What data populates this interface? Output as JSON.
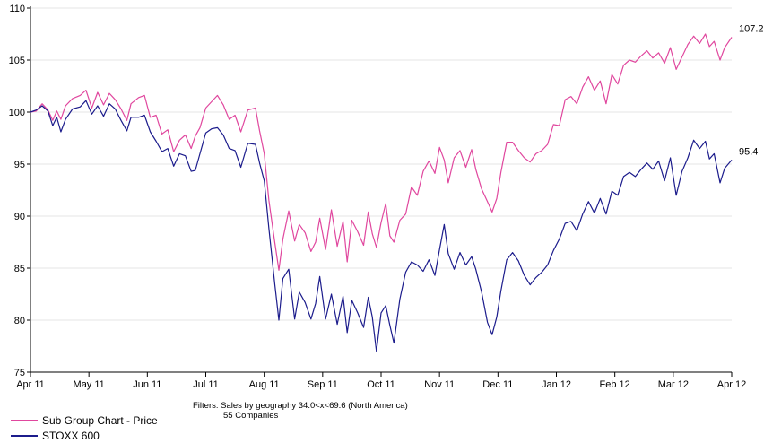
{
  "chart_data": {
    "type": "line",
    "title": "",
    "xlabel": "",
    "ylabel": "",
    "ylim": [
      75,
      110
    ],
    "yticks": [
      75,
      80,
      85,
      90,
      95,
      100,
      105,
      110
    ],
    "xlim": [
      0,
      12
    ],
    "xticks": [
      {
        "label": "Apr 11",
        "x": 0
      },
      {
        "label": "May 11",
        "x": 1
      },
      {
        "label": "Jun 11",
        "x": 2
      },
      {
        "label": "Jul 11",
        "x": 3
      },
      {
        "label": "Aug 11",
        "x": 4
      },
      {
        "label": "Sep 11",
        "x": 5
      },
      {
        "label": "Oct 11",
        "x": 6
      },
      {
        "label": "Nov 11",
        "x": 7
      },
      {
        "label": "Dec 11",
        "x": 8
      },
      {
        "label": "Jan 12",
        "x": 9
      },
      {
        "label": "Feb 12",
        "x": 10
      },
      {
        "label": "Mar 12",
        "x": 11
      },
      {
        "label": "Apr 12",
        "x": 12
      }
    ],
    "grid": "horizontal",
    "legend_position": "bottom-left",
    "series": [
      {
        "name": "Sub Group Chart - Price",
        "color": "#e0479e",
        "end_label": "107.2",
        "points": [
          [
            0,
            100
          ],
          [
            0.1,
            100.1
          ],
          [
            0.2,
            100.8
          ],
          [
            0.3,
            100.2
          ],
          [
            0.38,
            99.2
          ],
          [
            0.45,
            100.1
          ],
          [
            0.52,
            99.3
          ],
          [
            0.6,
            100.6
          ],
          [
            0.72,
            101.3
          ],
          [
            0.85,
            101.6
          ],
          [
            0.95,
            102.1
          ],
          [
            1.05,
            100.4
          ],
          [
            1.15,
            101.9
          ],
          [
            1.25,
            100.7
          ],
          [
            1.35,
            101.8
          ],
          [
            1.45,
            101.2
          ],
          [
            1.55,
            100.3
          ],
          [
            1.65,
            99.2
          ],
          [
            1.72,
            100.8
          ],
          [
            1.85,
            101.4
          ],
          [
            1.95,
            101.6
          ],
          [
            2.05,
            99.5
          ],
          [
            2.15,
            99.7
          ],
          [
            2.25,
            97.9
          ],
          [
            2.35,
            98.3
          ],
          [
            2.45,
            96.2
          ],
          [
            2.55,
            97.3
          ],
          [
            2.65,
            97.8
          ],
          [
            2.75,
            96.5
          ],
          [
            2.82,
            97.7
          ],
          [
            2.9,
            98.5
          ],
          [
            3.0,
            100.4
          ],
          [
            3.1,
            101.0
          ],
          [
            3.2,
            101.6
          ],
          [
            3.3,
            100.7
          ],
          [
            3.4,
            99.3
          ],
          [
            3.5,
            99.7
          ],
          [
            3.6,
            98.1
          ],
          [
            3.72,
            100.2
          ],
          [
            3.85,
            100.4
          ],
          [
            3.92,
            98.2
          ],
          [
            4.0,
            96.0
          ],
          [
            4.08,
            91.5
          ],
          [
            4.18,
            87.5
          ],
          [
            4.25,
            84.8
          ],
          [
            4.32,
            87.8
          ],
          [
            4.42,
            90.5
          ],
          [
            4.52,
            87.6
          ],
          [
            4.6,
            89.2
          ],
          [
            4.7,
            88.4
          ],
          [
            4.8,
            86.6
          ],
          [
            4.88,
            87.5
          ],
          [
            4.95,
            89.8
          ],
          [
            5.05,
            86.8
          ],
          [
            5.15,
            90.6
          ],
          [
            5.25,
            87.1
          ],
          [
            5.35,
            89.5
          ],
          [
            5.42,
            85.6
          ],
          [
            5.5,
            89.6
          ],
          [
            5.6,
            88.5
          ],
          [
            5.7,
            87.2
          ],
          [
            5.78,
            90.4
          ],
          [
            5.85,
            88.3
          ],
          [
            5.92,
            87.0
          ],
          [
            6.0,
            89.4
          ],
          [
            6.08,
            91.2
          ],
          [
            6.15,
            88.1
          ],
          [
            6.22,
            87.5
          ],
          [
            6.32,
            89.6
          ],
          [
            6.42,
            90.2
          ],
          [
            6.52,
            92.8
          ],
          [
            6.62,
            92.0
          ],
          [
            6.72,
            94.3
          ],
          [
            6.82,
            95.3
          ],
          [
            6.92,
            94.1
          ],
          [
            7.0,
            96.6
          ],
          [
            7.08,
            95.4
          ],
          [
            7.15,
            93.2
          ],
          [
            7.25,
            95.6
          ],
          [
            7.35,
            96.3
          ],
          [
            7.45,
            94.7
          ],
          [
            7.55,
            96.4
          ],
          [
            7.62,
            94.5
          ],
          [
            7.72,
            92.6
          ],
          [
            7.82,
            91.4
          ],
          [
            7.9,
            90.4
          ],
          [
            7.98,
            91.7
          ],
          [
            8.05,
            94.2
          ],
          [
            8.15,
            97.1
          ],
          [
            8.25,
            97.1
          ],
          [
            8.35,
            96.3
          ],
          [
            8.45,
            95.6
          ],
          [
            8.55,
            95.2
          ],
          [
            8.65,
            96.0
          ],
          [
            8.75,
            96.3
          ],
          [
            8.85,
            96.9
          ],
          [
            8.95,
            98.8
          ],
          [
            9.05,
            98.7
          ],
          [
            9.15,
            101.2
          ],
          [
            9.25,
            101.5
          ],
          [
            9.35,
            100.8
          ],
          [
            9.45,
            102.4
          ],
          [
            9.55,
            103.4
          ],
          [
            9.65,
            102.1
          ],
          [
            9.75,
            103.0
          ],
          [
            9.85,
            100.8
          ],
          [
            9.95,
            103.6
          ],
          [
            10.05,
            102.7
          ],
          [
            10.15,
            104.5
          ],
          [
            10.25,
            105.0
          ],
          [
            10.35,
            104.8
          ],
          [
            10.45,
            105.4
          ],
          [
            10.55,
            105.9
          ],
          [
            10.65,
            105.2
          ],
          [
            10.75,
            105.7
          ],
          [
            10.85,
            104.7
          ],
          [
            10.95,
            106.2
          ],
          [
            11.05,
            104.1
          ],
          [
            11.15,
            105.3
          ],
          [
            11.25,
            106.5
          ],
          [
            11.35,
            107.3
          ],
          [
            11.45,
            106.6
          ],
          [
            11.55,
            107.5
          ],
          [
            11.62,
            106.3
          ],
          [
            11.7,
            106.8
          ],
          [
            11.8,
            105.0
          ],
          [
            11.88,
            106.2
          ],
          [
            12.0,
            107.2
          ]
        ]
      },
      {
        "name": "STOXX 600",
        "color": "#1c1c8c",
        "end_label": "95.4",
        "points": [
          [
            0,
            100
          ],
          [
            0.1,
            100.2
          ],
          [
            0.2,
            100.6
          ],
          [
            0.3,
            100.1
          ],
          [
            0.38,
            98.7
          ],
          [
            0.45,
            99.5
          ],
          [
            0.52,
            98.1
          ],
          [
            0.6,
            99.3
          ],
          [
            0.72,
            100.3
          ],
          [
            0.85,
            100.5
          ],
          [
            0.95,
            101.1
          ],
          [
            1.05,
            99.8
          ],
          [
            1.15,
            100.6
          ],
          [
            1.25,
            99.6
          ],
          [
            1.35,
            100.8
          ],
          [
            1.45,
            100.3
          ],
          [
            1.55,
            99.2
          ],
          [
            1.65,
            98.2
          ],
          [
            1.72,
            99.5
          ],
          [
            1.85,
            99.5
          ],
          [
            1.95,
            99.7
          ],
          [
            2.05,
            98.1
          ],
          [
            2.15,
            97.2
          ],
          [
            2.25,
            96.2
          ],
          [
            2.35,
            96.5
          ],
          [
            2.45,
            94.8
          ],
          [
            2.55,
            96.0
          ],
          [
            2.65,
            95.8
          ],
          [
            2.75,
            94.3
          ],
          [
            2.82,
            94.4
          ],
          [
            2.9,
            96.0
          ],
          [
            3.0,
            98.0
          ],
          [
            3.1,
            98.4
          ],
          [
            3.2,
            98.5
          ],
          [
            3.3,
            97.8
          ],
          [
            3.4,
            96.5
          ],
          [
            3.5,
            96.3
          ],
          [
            3.6,
            94.7
          ],
          [
            3.72,
            97.0
          ],
          [
            3.85,
            96.9
          ],
          [
            3.92,
            95.1
          ],
          [
            4.0,
            93.4
          ],
          [
            4.08,
            88.8
          ],
          [
            4.18,
            83.5
          ],
          [
            4.25,
            80.0
          ],
          [
            4.32,
            84.0
          ],
          [
            4.42,
            84.9
          ],
          [
            4.52,
            80.1
          ],
          [
            4.6,
            82.7
          ],
          [
            4.7,
            81.7
          ],
          [
            4.8,
            80.1
          ],
          [
            4.88,
            81.6
          ],
          [
            4.95,
            84.2
          ],
          [
            5.05,
            80.1
          ],
          [
            5.15,
            82.5
          ],
          [
            5.25,
            79.6
          ],
          [
            5.35,
            82.3
          ],
          [
            5.42,
            78.8
          ],
          [
            5.5,
            81.9
          ],
          [
            5.6,
            80.7
          ],
          [
            5.7,
            79.3
          ],
          [
            5.78,
            82.2
          ],
          [
            5.85,
            80.3
          ],
          [
            5.92,
            77.0
          ],
          [
            6.0,
            80.7
          ],
          [
            6.08,
            81.4
          ],
          [
            6.15,
            79.5
          ],
          [
            6.22,
            77.8
          ],
          [
            6.32,
            82.0
          ],
          [
            6.42,
            84.6
          ],
          [
            6.52,
            85.6
          ],
          [
            6.62,
            85.3
          ],
          [
            6.72,
            84.7
          ],
          [
            6.82,
            85.8
          ],
          [
            6.92,
            84.3
          ],
          [
            7.0,
            86.8
          ],
          [
            7.08,
            89.2
          ],
          [
            7.15,
            86.4
          ],
          [
            7.25,
            84.9
          ],
          [
            7.35,
            86.5
          ],
          [
            7.45,
            85.3
          ],
          [
            7.55,
            86.1
          ],
          [
            7.62,
            84.9
          ],
          [
            7.72,
            82.7
          ],
          [
            7.82,
            79.8
          ],
          [
            7.9,
            78.6
          ],
          [
            7.98,
            80.3
          ],
          [
            8.05,
            82.8
          ],
          [
            8.15,
            85.8
          ],
          [
            8.25,
            86.5
          ],
          [
            8.35,
            85.7
          ],
          [
            8.45,
            84.3
          ],
          [
            8.55,
            83.4
          ],
          [
            8.65,
            84.1
          ],
          [
            8.75,
            84.6
          ],
          [
            8.85,
            85.3
          ],
          [
            8.95,
            86.7
          ],
          [
            9.05,
            87.8
          ],
          [
            9.15,
            89.3
          ],
          [
            9.25,
            89.5
          ],
          [
            9.35,
            88.6
          ],
          [
            9.45,
            90.2
          ],
          [
            9.55,
            91.4
          ],
          [
            9.65,
            90.3
          ],
          [
            9.75,
            91.7
          ],
          [
            9.85,
            90.2
          ],
          [
            9.95,
            92.4
          ],
          [
            10.05,
            92.0
          ],
          [
            10.15,
            93.8
          ],
          [
            10.25,
            94.2
          ],
          [
            10.35,
            93.8
          ],
          [
            10.45,
            94.5
          ],
          [
            10.55,
            95.1
          ],
          [
            10.65,
            94.5
          ],
          [
            10.75,
            95.3
          ],
          [
            10.85,
            93.4
          ],
          [
            10.95,
            95.6
          ],
          [
            11.05,
            92.0
          ],
          [
            11.15,
            94.3
          ],
          [
            11.25,
            95.6
          ],
          [
            11.35,
            97.3
          ],
          [
            11.45,
            96.5
          ],
          [
            11.55,
            97.2
          ],
          [
            11.62,
            95.5
          ],
          [
            11.7,
            96.0
          ],
          [
            11.8,
            93.2
          ],
          [
            11.88,
            94.6
          ],
          [
            12.0,
            95.4
          ]
        ]
      }
    ]
  },
  "footnote": {
    "line1": "Filters: Sales by geography 34.0<x<69.6 (North America)",
    "line2": "55 Companies"
  }
}
